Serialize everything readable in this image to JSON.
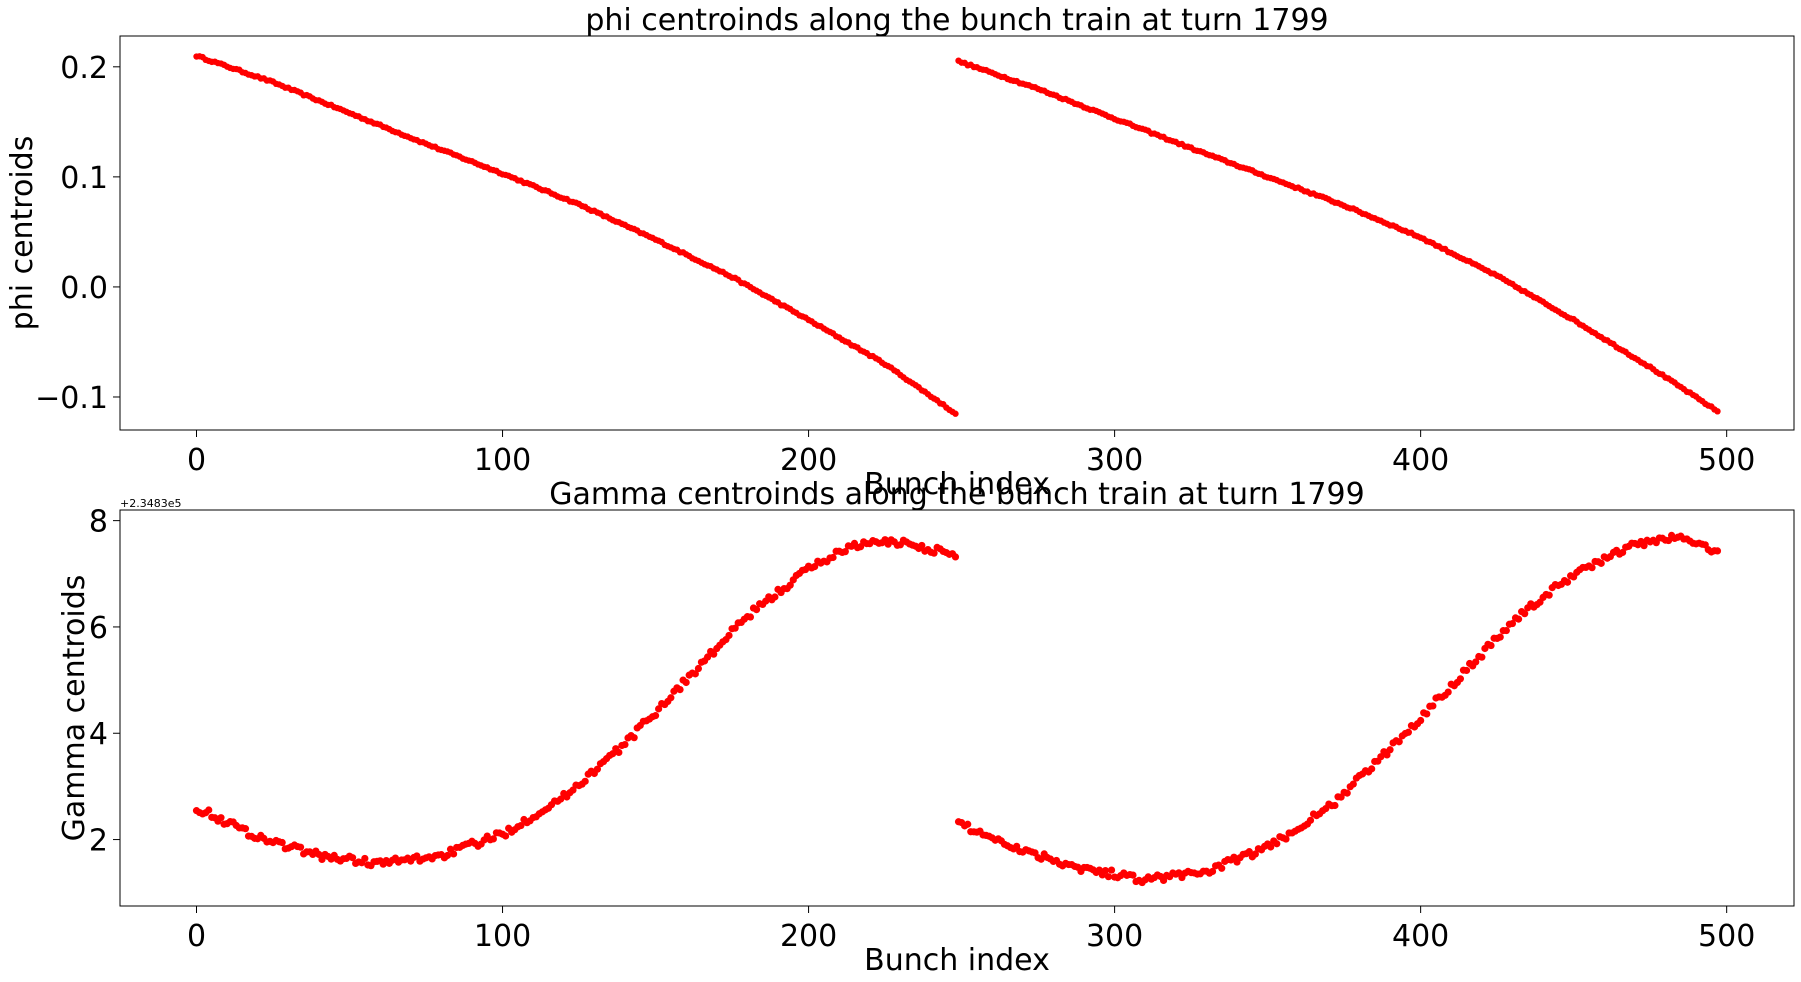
{
  "figure": {
    "marker_color": "#ff0000",
    "background": "#ffffff"
  },
  "chart_data": [
    {
      "type": "scatter",
      "title": "phi centroinds along the bunch train at turn 1799",
      "xlabel": "Bunch index",
      "ylabel": "phi centroids",
      "xlim": [
        -25,
        522
      ],
      "ylim": [
        -0.13,
        0.228
      ],
      "xticks": [
        0,
        100,
        200,
        300,
        400,
        500
      ],
      "xtick_labels": [
        "0",
        "100",
        "200",
        "300",
        "400",
        "500"
      ],
      "yticks": [
        -0.1,
        0.0,
        0.1,
        0.2
      ],
      "ytick_labels": [
        "−0.1",
        "0.0",
        "0.1",
        "0.2"
      ],
      "grid": false,
      "series": [
        {
          "color": "#ff0000",
          "segments": [
            {
              "x_start": 0,
              "x_end": 248,
              "curve": {
                "x": [
                  0,
                  25,
                  50,
                  75,
                  100,
                  125,
                  150,
                  175,
                  200,
                  225,
                  248
                ],
                "y": [
                  0.21,
                  0.186,
                  0.158,
                  0.13,
                  0.103,
                  0.075,
                  0.043,
                  0.009,
                  -0.03,
                  -0.07,
                  -0.115
                ]
              }
            },
            {
              "x_start": 249,
              "x_end": 497,
              "curve": {
                "x": [
                  249,
                  275,
                  300,
                  325,
                  350,
                  375,
                  400,
                  425,
                  450,
                  475,
                  497
                ],
                "y": [
                  0.205,
                  0.18,
                  0.153,
                  0.126,
                  0.1,
                  0.074,
                  0.045,
                  0.01,
                  -0.03,
                  -0.073,
                  -0.113
                ]
              }
            }
          ]
        }
      ]
    },
    {
      "type": "scatter",
      "title": "Gamma centroinds along the bunch train at turn 1799",
      "xlabel": "Bunch index",
      "ylabel": "Gamma centroids",
      "offset_text": "+2.3483e5",
      "xlim": [
        -25,
        522
      ],
      "ylim": [
        0.75,
        8.2
      ],
      "xticks": [
        0,
        100,
        200,
        300,
        400,
        500
      ],
      "xtick_labels": [
        "0",
        "100",
        "200",
        "300",
        "400",
        "500"
      ],
      "yticks": [
        2,
        4,
        6,
        8
      ],
      "ytick_labels": [
        "2",
        "4",
        "6",
        "8"
      ],
      "grid": false,
      "series": [
        {
          "color": "#ff0000",
          "segments": [
            {
              "x_start": 0,
              "x_end": 248,
              "curve": {
                "x": [
                  0,
                  20,
                  40,
                  60,
                  80,
                  100,
                  120,
                  140,
                  160,
                  180,
                  200,
                  215,
                  230,
                  248
                ],
                "y": [
                  2.6,
                  2.05,
                  1.7,
                  1.55,
                  1.7,
                  2.1,
                  2.8,
                  3.8,
                  5.0,
                  6.2,
                  7.1,
                  7.55,
                  7.6,
                  7.35
                ]
              }
            },
            {
              "x_start": 249,
              "x_end": 497,
              "curve": {
                "x": [
                  249,
                  270,
                  290,
                  310,
                  330,
                  350,
                  370,
                  390,
                  410,
                  430,
                  450,
                  470,
                  485,
                  497
                ],
                "y": [
                  2.3,
                  1.8,
                  1.45,
                  1.25,
                  1.4,
                  1.85,
                  2.6,
                  3.7,
                  4.9,
                  6.1,
                  7.0,
                  7.55,
                  7.7,
                  7.4
                ]
              }
            }
          ]
        }
      ]
    }
  ]
}
